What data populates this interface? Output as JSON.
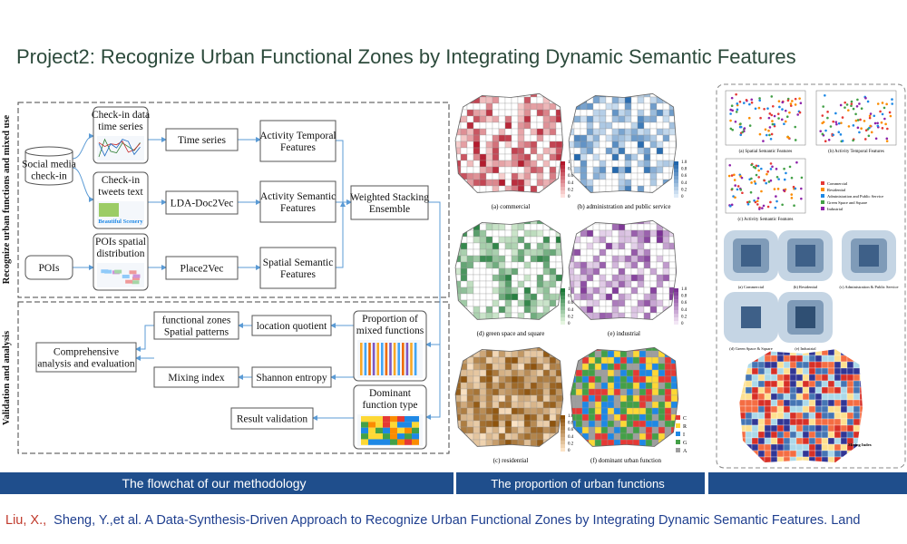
{
  "header": {
    "title": "Project2: Recognize Urban Functional Zones by Integrating Dynamic Semantic Features"
  },
  "flowchart": {
    "section_labels": [
      "Recognize urban functions and mixed use",
      "Validation and analysis"
    ],
    "image_label": "Beautiful Scenery",
    "nodes": [
      {
        "lines": [
          "Social media",
          "check-in"
        ]
      },
      {
        "lines": [
          "Check-in data",
          "time series"
        ]
      },
      {
        "lines": [
          "Time series"
        ]
      },
      {
        "lines": [
          "Activity Temporal",
          "Features"
        ]
      },
      {
        "lines": [
          "Check-in",
          "tweets text"
        ]
      },
      {
        "lines": [
          "LDA-Doc2Vec"
        ]
      },
      {
        "lines": [
          "Activity Semantic",
          "Features"
        ]
      },
      {
        "lines": [
          "Weighted Stacking",
          "Ensemble"
        ]
      },
      {
        "lines": [
          "POIs"
        ]
      },
      {
        "lines": [
          "POIs spatial",
          "distribution"
        ]
      },
      {
        "lines": [
          "Place2Vec"
        ]
      },
      {
        "lines": [
          "Spatial Semantic",
          "Features"
        ]
      },
      {
        "lines": [
          "Proportion of",
          "mixed functions"
        ]
      },
      {
        "lines": [
          "location quotient"
        ]
      },
      {
        "lines": [
          "functional zones",
          "Spatial patterns"
        ]
      },
      {
        "lines": [
          "Shannon entropy"
        ]
      },
      {
        "lines": [
          "Mixing index"
        ]
      },
      {
        "lines": [
          "Comprehensive",
          "analysis and evaluation"
        ]
      },
      {
        "lines": [
          "Dominant",
          "function type"
        ]
      },
      {
        "lines": [
          "Result validation"
        ]
      }
    ]
  },
  "maps": {
    "panels": [
      {
        "caption": "(a) commercial"
      },
      {
        "caption": "(b) administration and public service"
      },
      {
        "caption": "(d) green space and square"
      },
      {
        "caption": "(e) industrial"
      },
      {
        "caption": "(c) residential"
      },
      {
        "caption": "(f) dominant urban function"
      }
    ],
    "colorbar_ticks": [
      "1.0",
      "0.8",
      "0.6",
      "0.4",
      "0.2",
      "0"
    ],
    "dominant_legend": [
      "C",
      "R",
      "I",
      "G",
      "A"
    ]
  },
  "right_panel": {
    "scatter_captions": [
      "(a) Spatial Semantic Features",
      "(b) Activity Temporal Features",
      "(c) Activity Semantic Features"
    ],
    "legend": [
      "Commercial",
      "Residential",
      "Administration and Public Service",
      "Green Space and Square",
      "Industrial"
    ],
    "map_captions": [
      "(a) Commercial",
      "(b) Residential",
      "(c) Administration & Public Service",
      "(d) Green Space & Square",
      "(e) Industrial"
    ],
    "mixing_title": "Mixing Index"
  },
  "footer": {
    "captions": [
      "The flowchat of our methodology",
      "The proportion of urban functions"
    ],
    "citation": {
      "authors_first": "Liu, X.,",
      "rest": "Sheng, Y.,et al. A Data-Synthesis-Driven Approach to Recognize Urban Functional Zones by Integrating Dynamic Semantic Features. Land"
    }
  }
}
